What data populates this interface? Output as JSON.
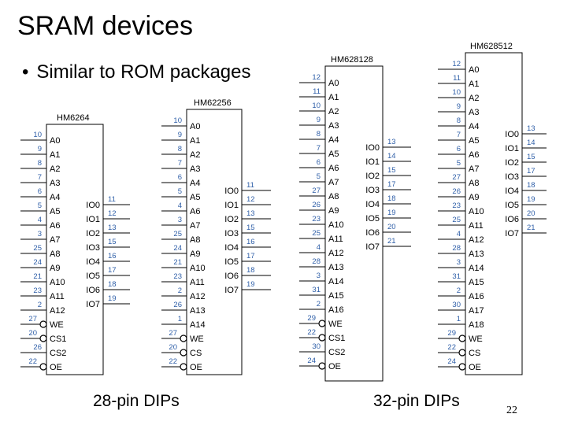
{
  "slide": {
    "title": "SRAM devices",
    "bullet": "Similar to ROM packages",
    "caption_28": "28-pin DIPs",
    "caption_32": "32-pin DIPs",
    "page_number": "22"
  },
  "colors": {
    "pin_number": "#2f5fa8",
    "line": "#000000"
  },
  "chips": [
    {
      "name": "HM6264",
      "left": [
        {
          "n": "10",
          "s": "A0"
        },
        {
          "n": "9",
          "s": "A1"
        },
        {
          "n": "8",
          "s": "A2"
        },
        {
          "n": "7",
          "s": "A3"
        },
        {
          "n": "6",
          "s": "A4"
        },
        {
          "n": "5",
          "s": "A5"
        },
        {
          "n": "4",
          "s": "A6"
        },
        {
          "n": "3",
          "s": "A7"
        },
        {
          "n": "25",
          "s": "A8"
        },
        {
          "n": "24",
          "s": "A9"
        },
        {
          "n": "21",
          "s": "A10"
        },
        {
          "n": "23",
          "s": "A11"
        },
        {
          "n": "2",
          "s": "A12"
        },
        {
          "n": "27",
          "s": "WE",
          "bubble": true
        },
        {
          "n": "20",
          "s": "CS1",
          "bubble": true
        },
        {
          "n": "26",
          "s": "CS2"
        },
        {
          "n": "22",
          "s": "OE",
          "bubble": true
        }
      ],
      "right": [
        {
          "n": "11",
          "s": "IO0"
        },
        {
          "n": "12",
          "s": "IO1"
        },
        {
          "n": "13",
          "s": "IO2"
        },
        {
          "n": "15",
          "s": "IO3"
        },
        {
          "n": "16",
          "s": "IO4"
        },
        {
          "n": "17",
          "s": "IO5"
        },
        {
          "n": "18",
          "s": "IO6"
        },
        {
          "n": "19",
          "s": "IO7"
        }
      ]
    },
    {
      "name": "HM62256",
      "left": [
        {
          "n": "10",
          "s": "A0"
        },
        {
          "n": "9",
          "s": "A1"
        },
        {
          "n": "8",
          "s": "A2"
        },
        {
          "n": "7",
          "s": "A3"
        },
        {
          "n": "6",
          "s": "A4"
        },
        {
          "n": "5",
          "s": "A5"
        },
        {
          "n": "4",
          "s": "A6"
        },
        {
          "n": "3",
          "s": "A7"
        },
        {
          "n": "25",
          "s": "A8"
        },
        {
          "n": "24",
          "s": "A9"
        },
        {
          "n": "21",
          "s": "A10"
        },
        {
          "n": "23",
          "s": "A11"
        },
        {
          "n": "2",
          "s": "A12"
        },
        {
          "n": "26",
          "s": "A13"
        },
        {
          "n": "1",
          "s": "A14"
        },
        {
          "n": "27",
          "s": "WE",
          "bubble": true
        },
        {
          "n": "20",
          "s": "CS",
          "bubble": true
        },
        {
          "n": "22",
          "s": "OE",
          "bubble": true
        }
      ],
      "right": [
        {
          "n": "11",
          "s": "IO0"
        },
        {
          "n": "12",
          "s": "IO1"
        },
        {
          "n": "13",
          "s": "IO2"
        },
        {
          "n": "15",
          "s": "IO3"
        },
        {
          "n": "16",
          "s": "IO4"
        },
        {
          "n": "17",
          "s": "IO5"
        },
        {
          "n": "18",
          "s": "IO6"
        },
        {
          "n": "19",
          "s": "IO7"
        }
      ]
    },
    {
      "name": "HM628128",
      "left": [
        {
          "n": "12",
          "s": "A0"
        },
        {
          "n": "11",
          "s": "A1"
        },
        {
          "n": "10",
          "s": "A2"
        },
        {
          "n": "9",
          "s": "A3"
        },
        {
          "n": "8",
          "s": "A4"
        },
        {
          "n": "7",
          "s": "A5"
        },
        {
          "n": "6",
          "s": "A6"
        },
        {
          "n": "5",
          "s": "A7"
        },
        {
          "n": "27",
          "s": "A8"
        },
        {
          "n": "26",
          "s": "A9"
        },
        {
          "n": "23",
          "s": "A10"
        },
        {
          "n": "25",
          "s": "A11"
        },
        {
          "n": "4",
          "s": "A12"
        },
        {
          "n": "28",
          "s": "A13"
        },
        {
          "n": "3",
          "s": "A14"
        },
        {
          "n": "31",
          "s": "A15"
        },
        {
          "n": "2",
          "s": "A16"
        },
        {
          "n": "29",
          "s": "WE",
          "bubble": true
        },
        {
          "n": "22",
          "s": "CS1",
          "bubble": true
        },
        {
          "n": "30",
          "s": "CS2"
        },
        {
          "n": "24",
          "s": "OE",
          "bubble": true
        }
      ],
      "right": [
        {
          "n": "13",
          "s": "IO0"
        },
        {
          "n": "14",
          "s": "IO1"
        },
        {
          "n": "15",
          "s": "IO2"
        },
        {
          "n": "17",
          "s": "IO3"
        },
        {
          "n": "18",
          "s": "IO4"
        },
        {
          "n": "19",
          "s": "IO5"
        },
        {
          "n": "20",
          "s": "IO6"
        },
        {
          "n": "21",
          "s": "IO7"
        }
      ]
    },
    {
      "name": "HM628512",
      "left": [
        {
          "n": "12",
          "s": "A0"
        },
        {
          "n": "11",
          "s": "A1"
        },
        {
          "n": "10",
          "s": "A2"
        },
        {
          "n": "9",
          "s": "A3"
        },
        {
          "n": "8",
          "s": "A4"
        },
        {
          "n": "7",
          "s": "A5"
        },
        {
          "n": "6",
          "s": "A6"
        },
        {
          "n": "5",
          "s": "A7"
        },
        {
          "n": "27",
          "s": "A8"
        },
        {
          "n": "26",
          "s": "A9"
        },
        {
          "n": "23",
          "s": "A10"
        },
        {
          "n": "25",
          "s": "A11"
        },
        {
          "n": "4",
          "s": "A12"
        },
        {
          "n": "28",
          "s": "A13"
        },
        {
          "n": "3",
          "s": "A14"
        },
        {
          "n": "31",
          "s": "A15"
        },
        {
          "n": "2",
          "s": "A16"
        },
        {
          "n": "30",
          "s": "A17"
        },
        {
          "n": "1",
          "s": "A18"
        },
        {
          "n": "29",
          "s": "WE",
          "bubble": true
        },
        {
          "n": "22",
          "s": "CS",
          "bubble": true
        },
        {
          "n": "24",
          "s": "OE",
          "bubble": true
        }
      ],
      "right": [
        {
          "n": "13",
          "s": "IO0"
        },
        {
          "n": "14",
          "s": "IO1"
        },
        {
          "n": "15",
          "s": "IO2"
        },
        {
          "n": "17",
          "s": "IO3"
        },
        {
          "n": "18",
          "s": "IO4"
        },
        {
          "n": "19",
          "s": "IO5"
        },
        {
          "n": "20",
          "s": "IO6"
        },
        {
          "n": "21",
          "s": "IO7"
        }
      ]
    }
  ]
}
